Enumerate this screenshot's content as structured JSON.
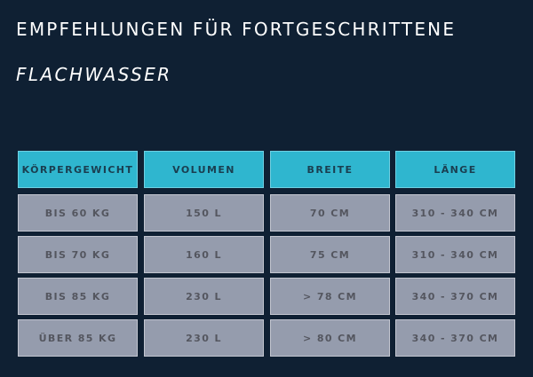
{
  "page": {
    "title": "EMPFEHLUNGEN FÜR FORTGESCHRITTENE",
    "subtitle": "FLACHWASSER"
  },
  "table": {
    "headers": [
      "KÖRPERGEWICHT",
      "VOLUMEN",
      "BREITE",
      "LÄNGE"
    ],
    "rows": [
      [
        "BIS 60 KG",
        "150 L",
        "70 CM",
        "310 - 340 CM"
      ],
      [
        "BIS 70 KG",
        "160 L",
        "75 CM",
        "310 - 340 CM"
      ],
      [
        "BIS 85 KG",
        "230 L",
        "> 78 CM",
        "340 - 370 CM"
      ],
      [
        "ÜBER 85 KG",
        "230 L",
        "> 80 CM",
        "340 - 370 CM"
      ]
    ]
  },
  "colors": {
    "background": "#0f2033",
    "header_fill": "#2fb6cf",
    "header_text": "#1a3e50",
    "cell_fill": "#959cad",
    "cell_text": "#54565f"
  }
}
